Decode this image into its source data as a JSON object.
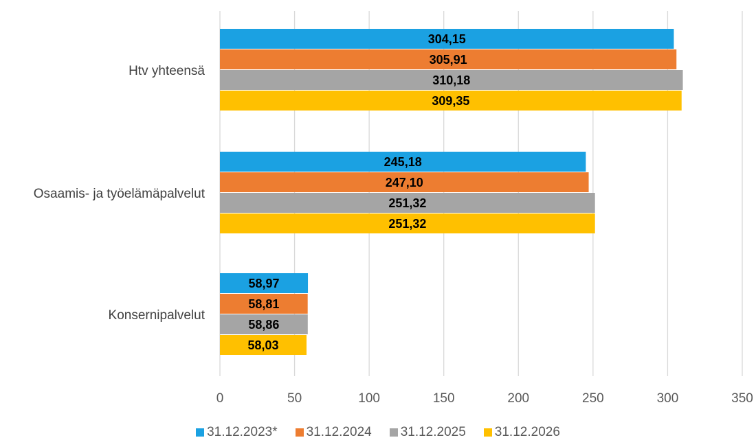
{
  "chart_data": {
    "type": "bar",
    "orientation": "horizontal",
    "categories": [
      "Htv yhteensä",
      "Osaamis- ja työelämäpalvelut",
      "Konsernipalvelut"
    ],
    "series": [
      {
        "name": "31.12.2023*",
        "color": "#1ba1e2",
        "values": [
          304.15,
          245.18,
          58.97
        ],
        "labels": [
          "304,15",
          "245,18",
          "58,97"
        ]
      },
      {
        "name": "31.12.2024",
        "color": "#ed7d31",
        "values": [
          305.91,
          247.1,
          58.81
        ],
        "labels": [
          "305,91",
          "247,10",
          "58,81"
        ]
      },
      {
        "name": "31.12.2025",
        "color": "#a5a5a5",
        "values": [
          310.18,
          251.32,
          58.86
        ],
        "labels": [
          "310,18",
          "251,32",
          "58,86"
        ]
      },
      {
        "name": "31.12.2026",
        "color": "#ffc000",
        "values": [
          309.35,
          251.32,
          58.03
        ],
        "labels": [
          "309,35",
          "251,32",
          "58,03"
        ]
      }
    ],
    "xlim": [
      0,
      350
    ],
    "xticks": [
      "0",
      "50",
      "100",
      "150",
      "200",
      "250",
      "300",
      "350"
    ],
    "grid": true,
    "legend_position": "bottom"
  }
}
